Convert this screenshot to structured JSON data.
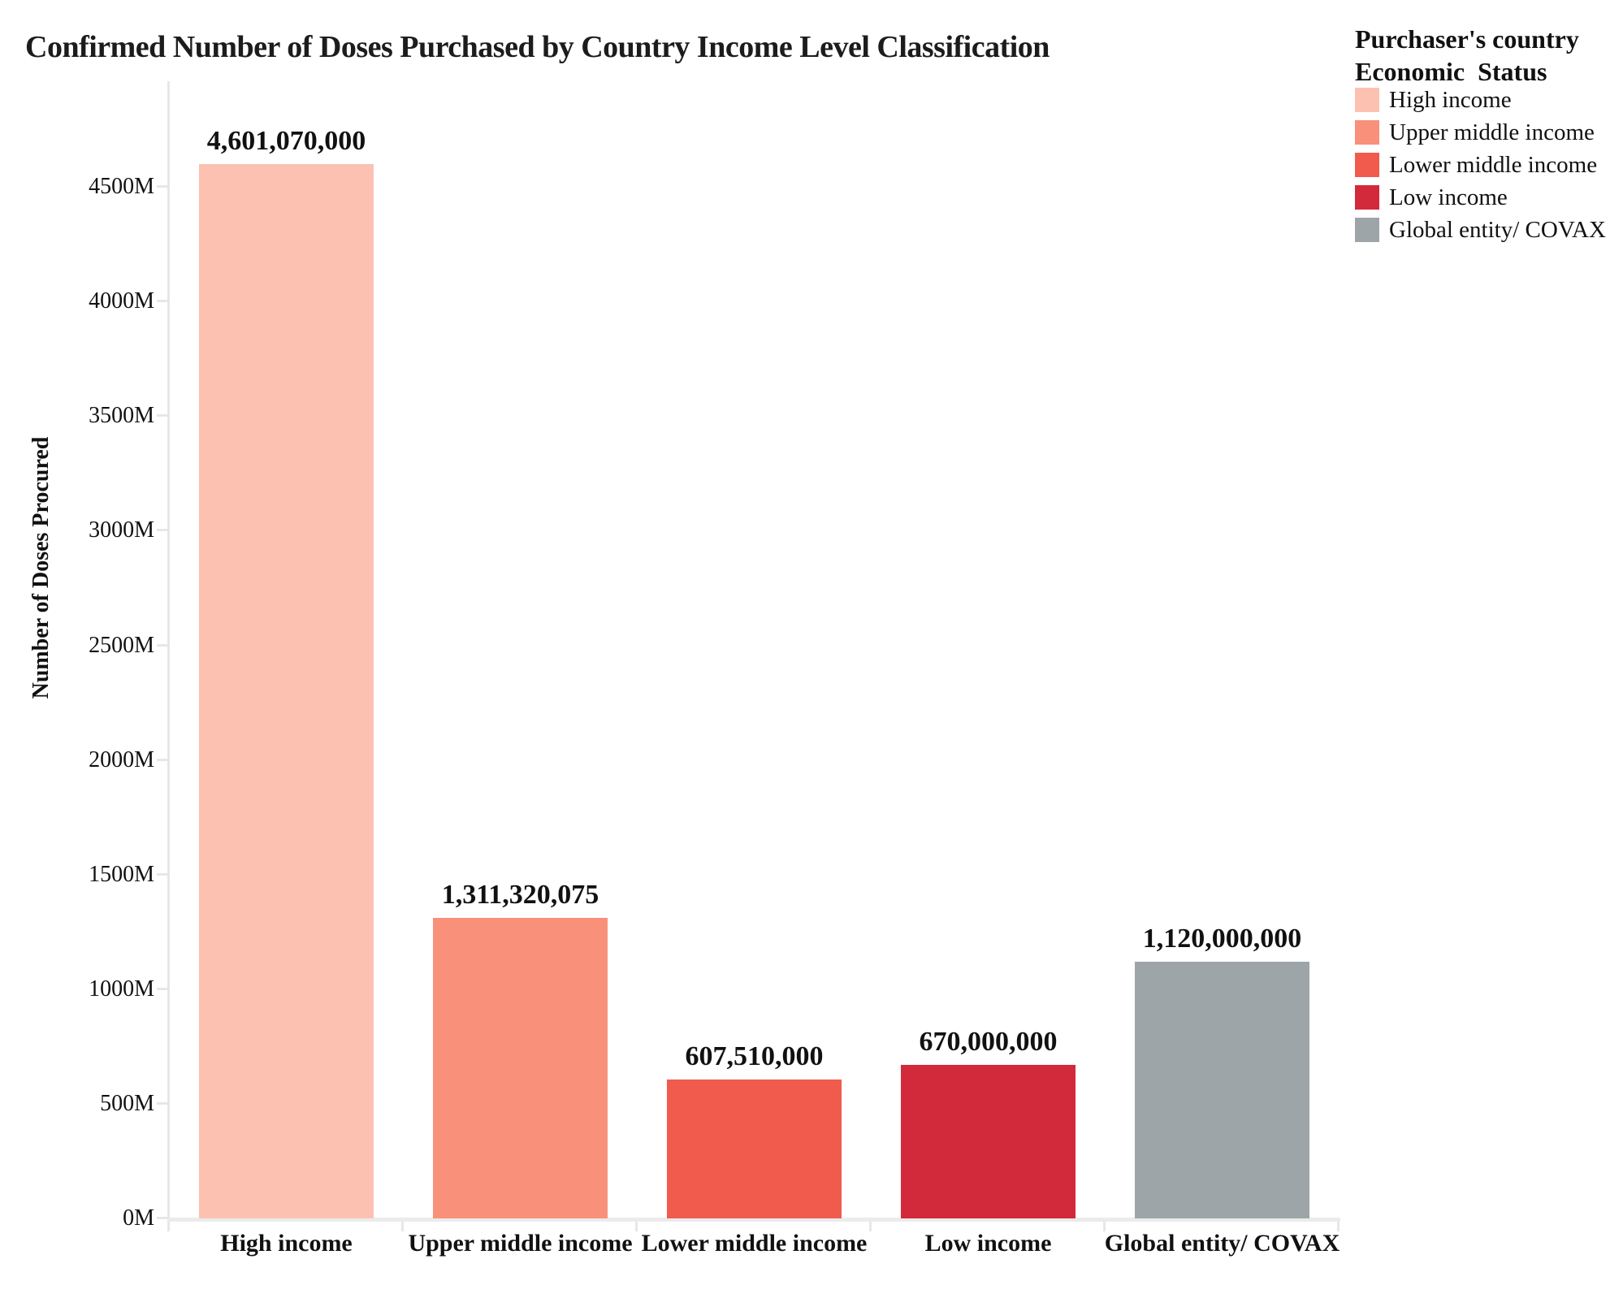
{
  "title": "Confirmed Number of Doses Purchased by Country Income Level Classification",
  "y_axis": {
    "label": "Number of Doses Procured"
  },
  "legend": {
    "title_line1": "Purchaser's country",
    "title_line2": "Economic  Status",
    "items": [
      {
        "label": "High income",
        "color": "#FCC1B1"
      },
      {
        "label": "Upper middle income",
        "color": "#F8907A"
      },
      {
        "label": "Lower middle income",
        "color": "#F05B4E"
      },
      {
        "label": "Low income",
        "color": "#D2293B"
      },
      {
        "label": "Global entity/ COVAX",
        "color": "#9DA5A8"
      }
    ]
  },
  "chart_data": {
    "type": "bar",
    "title": "Confirmed Number of Doses Purchased by Country Income Level Classification",
    "categories": [
      "High income",
      "Upper middle income",
      "Lower middle income",
      "Low income",
      "Global entity/ COVAX"
    ],
    "values": [
      4601070000,
      1311320075,
      607510000,
      670000000,
      1120000000
    ],
    "value_labels": [
      "4,601,070,000",
      "1,311,320,075",
      "607,510,000",
      "670,000,000",
      "1,120,000,000"
    ],
    "colors": [
      "#FCC1B1",
      "#F8907A",
      "#F05B4E",
      "#D2293B",
      "#9DA5A8"
    ],
    "xlabel": "",
    "ylabel": "Number of Doses Procured",
    "ylim_millions": [
      0,
      4950
    ],
    "yticks_millions": [
      0,
      500,
      1000,
      1500,
      2000,
      2500,
      3000,
      3500,
      4000,
      4500
    ],
    "ytick_labels": [
      "0M",
      "500M",
      "1000M",
      "1500M",
      "2000M",
      "2500M",
      "3000M",
      "3500M",
      "4000M",
      "4500M"
    ],
    "grid": false,
    "legend_title": "Purchaser's country Economic Status",
    "legend_position": "top-right"
  }
}
